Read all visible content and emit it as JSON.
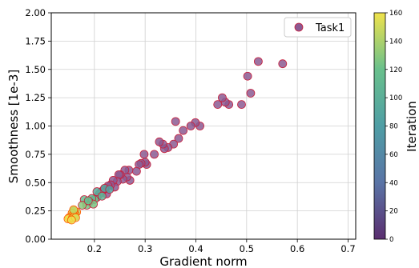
{
  "chart_data": {
    "type": "scatter",
    "xlabel": "Gradient norm",
    "ylabel": "Smoothness [1e-3]",
    "xlim": [
      0.115,
      0.715
    ],
    "ylim": [
      0.0,
      2.0
    ],
    "xticks": [
      "0.2",
      "0.3",
      "0.4",
      "0.5",
      "0.6",
      "0.7"
    ],
    "xtick_values": [
      0.2,
      0.3,
      0.4,
      0.5,
      0.6,
      0.7
    ],
    "yticks": [
      "0.00",
      "0.25",
      "0.50",
      "0.75",
      "1.00",
      "1.25",
      "1.50",
      "1.75",
      "2.00"
    ],
    "ytick_values": [
      0.0,
      0.25,
      0.5,
      0.75,
      1.0,
      1.25,
      1.5,
      1.75,
      2.0
    ],
    "grid": true,
    "legend": {
      "position": "top-right",
      "entries": [
        "Task1"
      ]
    },
    "colorbar": {
      "label": "Iteration",
      "range": [
        0,
        160
      ],
      "ticks": [
        "0",
        "20",
        "40",
        "60",
        "80",
        "100",
        "120",
        "140",
        "160"
      ],
      "tick_values": [
        0,
        20,
        40,
        60,
        80,
        100,
        120,
        140,
        160
      ],
      "colormap": [
        "#5a2e6f",
        "#5a74a6",
        "#4f9ea5",
        "#69c08c",
        "#f0e34c"
      ]
    },
    "series": [
      {
        "name": "Task1",
        "color": "#8b5a92",
        "edgecolor": "#c81e3c",
        "points": [
          [
            0.571,
            1.55
          ],
          [
            0.523,
            1.57
          ],
          [
            0.508,
            1.29
          ],
          [
            0.502,
            1.44
          ],
          [
            0.49,
            1.19
          ],
          [
            0.465,
            1.19
          ],
          [
            0.458,
            1.21
          ],
          [
            0.452,
            1.25
          ],
          [
            0.443,
            1.19
          ],
          [
            0.408,
            1.0
          ],
          [
            0.399,
            1.03
          ],
          [
            0.39,
            1.0
          ],
          [
            0.375,
            0.96
          ],
          [
            0.366,
            0.89
          ],
          [
            0.36,
            1.04
          ],
          [
            0.356,
            0.84
          ],
          [
            0.345,
            0.81
          ],
          [
            0.338,
            0.8
          ],
          [
            0.335,
            0.84
          ],
          [
            0.328,
            0.86
          ],
          [
            0.318,
            0.75
          ],
          [
            0.303,
            0.66
          ],
          [
            0.3,
            0.68
          ],
          [
            0.298,
            0.75
          ],
          [
            0.292,
            0.67
          ],
          [
            0.288,
            0.66
          ],
          [
            0.283,
            0.6
          ],
          [
            0.27,
            0.52
          ],
          [
            0.268,
            0.61
          ],
          [
            0.264,
            0.55
          ],
          [
            0.26,
            0.61
          ],
          [
            0.256,
            0.53
          ],
          [
            0.251,
            0.57
          ],
          [
            0.248,
            0.57
          ],
          [
            0.245,
            0.51
          ],
          [
            0.24,
            0.46
          ],
          [
            0.237,
            0.52
          ],
          [
            0.232,
            0.48
          ],
          [
            0.227,
            0.47
          ],
          [
            0.224,
            0.4
          ],
          [
            0.219,
            0.44
          ],
          [
            0.214,
            0.42
          ]
        ]
      }
    ],
    "iteration_points": [
      [
        0.21,
        0.4,
        100
      ],
      [
        0.205,
        0.37,
        110
      ],
      [
        0.2,
        0.35,
        120
      ],
      [
        0.195,
        0.36,
        110
      ],
      [
        0.19,
        0.33,
        120
      ],
      [
        0.185,
        0.3,
        125
      ],
      [
        0.18,
        0.35,
        115
      ],
      [
        0.176,
        0.3,
        130
      ],
      [
        0.205,
        0.42,
        95
      ],
      [
        0.22,
        0.45,
        90
      ],
      [
        0.23,
        0.44,
        85
      ],
      [
        0.215,
        0.38,
        105
      ],
      [
        0.198,
        0.31,
        125
      ],
      [
        0.188,
        0.34,
        118
      ],
      [
        0.165,
        0.24,
        145
      ],
      [
        0.162,
        0.22,
        150
      ],
      [
        0.16,
        0.25,
        148
      ],
      [
        0.158,
        0.21,
        152
      ],
      [
        0.156,
        0.23,
        150
      ],
      [
        0.154,
        0.2,
        155
      ],
      [
        0.152,
        0.18,
        158
      ],
      [
        0.15,
        0.19,
        156
      ],
      [
        0.148,
        0.18,
        160
      ],
      [
        0.157,
        0.19,
        157
      ],
      [
        0.161,
        0.2,
        154
      ],
      [
        0.163,
        0.19,
        153
      ],
      [
        0.155,
        0.17,
        159
      ],
      [
        0.159,
        0.26,
        146
      ]
    ]
  }
}
